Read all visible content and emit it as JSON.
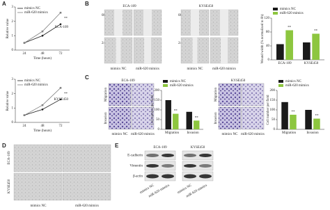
{
  "figure": {
    "panel_labels": [
      "A",
      "B",
      "C",
      "D",
      "E"
    ],
    "B_images": {
      "cells": [
        "ECA-109",
        "KYSE450"
      ],
      "rows": [
        "0h",
        "24h"
      ],
      "columns": [
        "mimics NC",
        "miR-620 mimics"
      ]
    },
    "C_images": {
      "cells": [
        "ECA-109",
        "KYSE450"
      ],
      "rows": [
        "Migration",
        "Invasion"
      ],
      "columns": [
        "mimics NC",
        "miR-620 mimics"
      ]
    },
    "D_images": {
      "rows": [
        "ECA-109",
        "KYSE450"
      ],
      "columns": [
        "mimics NC",
        "miR-620 mimics"
      ]
    },
    "E_blot": {
      "cells": [
        "ECA-109",
        "KYSE450"
      ],
      "proteins": [
        "E-cadherin",
        "Vimentin",
        "β-actin"
      ],
      "columns": [
        "mimics NC",
        "miR-620 mimics"
      ]
    }
  },
  "chart_data": [
    {
      "type": "line",
      "label": "ECA-109",
      "ylabel": "Relative value",
      "xlabel": "Time (hours)",
      "categories": [
        "24",
        "48",
        "72"
      ],
      "series": [
        {
          "name": "mimics NC",
          "color": "#1a1a1a",
          "values": [
            0.5,
            1.0,
            1.8
          ]
        },
        {
          "name": "miR-620 mimics",
          "color": "#7f7f7f",
          "values": [
            0.5,
            1.3,
            2.6
          ]
        }
      ],
      "ylim": [
        0,
        3
      ],
      "yticks": [
        0,
        1,
        2,
        3
      ],
      "annotations": [
        "**"
      ]
    },
    {
      "type": "line",
      "label": "KYSE450",
      "ylabel": "Relative value",
      "xlabel": "Time (hours)",
      "categories": [
        "24",
        "48",
        "72"
      ],
      "series": [
        {
          "name": "mimics NC",
          "color": "#1a1a1a",
          "values": [
            0.5,
            0.9,
            1.6
          ]
        },
        {
          "name": "miR-620 mimics",
          "color": "#7f7f7f",
          "values": [
            0.5,
            1.2,
            2.4
          ]
        }
      ],
      "ylim": [
        0,
        3
      ],
      "yticks": [
        0,
        1,
        2,
        3
      ],
      "annotations": [
        "**"
      ]
    },
    {
      "type": "bar",
      "ylabel": "Wound width (% normalized to 0h)",
      "categories": [
        "ECA-109",
        "KYSE450"
      ],
      "series": [
        {
          "name": "mimics NC",
          "color": "#1a1a1a",
          "values": [
            45,
            50
          ]
        },
        {
          "name": "miR-620 mimics",
          "color": "#8dc63f",
          "values": [
            85,
            75
          ]
        }
      ],
      "ylim": [
        0,
        120
      ],
      "yticks": [
        0,
        40,
        80,
        120
      ],
      "annotations": [
        "**",
        "**"
      ]
    },
    {
      "type": "bar",
      "ylabel": "Cell number per field",
      "categories": [
        "Migration",
        "Invasion"
      ],
      "series": [
        {
          "name": "mimics NC",
          "color": "#1a1a1a",
          "values": [
            150,
            90
          ]
        },
        {
          "name": "miR-620 mimics",
          "color": "#8dc63f",
          "values": [
            80,
            45
          ]
        }
      ],
      "ylim": [
        0,
        200
      ],
      "yticks": [
        0,
        50,
        100,
        150,
        200
      ],
      "annotations": [
        "**",
        "**"
      ]
    },
    {
      "type": "bar",
      "ylabel": "Cell number per field",
      "categories": [
        "Migration",
        "Invasion"
      ],
      "series": [
        {
          "name": "mimics NC",
          "color": "#1a1a1a",
          "values": [
            140,
            100
          ]
        },
        {
          "name": "miR-620 mimics",
          "color": "#8dc63f",
          "values": [
            75,
            55
          ]
        }
      ],
      "ylim": [
        0,
        200
      ],
      "yticks": [
        0,
        50,
        100,
        150,
        200
      ],
      "annotations": [
        "**",
        "**"
      ]
    }
  ]
}
